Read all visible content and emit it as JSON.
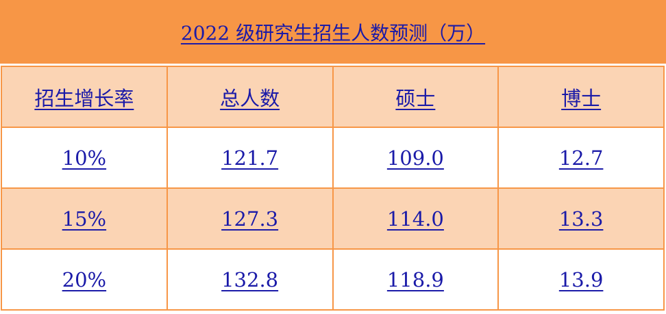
{
  "title": "2022 级研究生招生人数预测（万）",
  "headers": [
    "招生增长率",
    "总人数",
    "硕士",
    "博士"
  ],
  "rows": [
    [
      "10%",
      "121.7",
      "109.0",
      "12.7"
    ],
    [
      "15%",
      "127.3",
      "114.0",
      "13.3"
    ],
    [
      "20%",
      "132.8",
      "118.9",
      "13.9"
    ]
  ],
  "colors": {
    "title_bg": "#F79646",
    "header_bg": "#FBD4B4",
    "text": "#1a1aa8",
    "border": "#F79646"
  }
}
